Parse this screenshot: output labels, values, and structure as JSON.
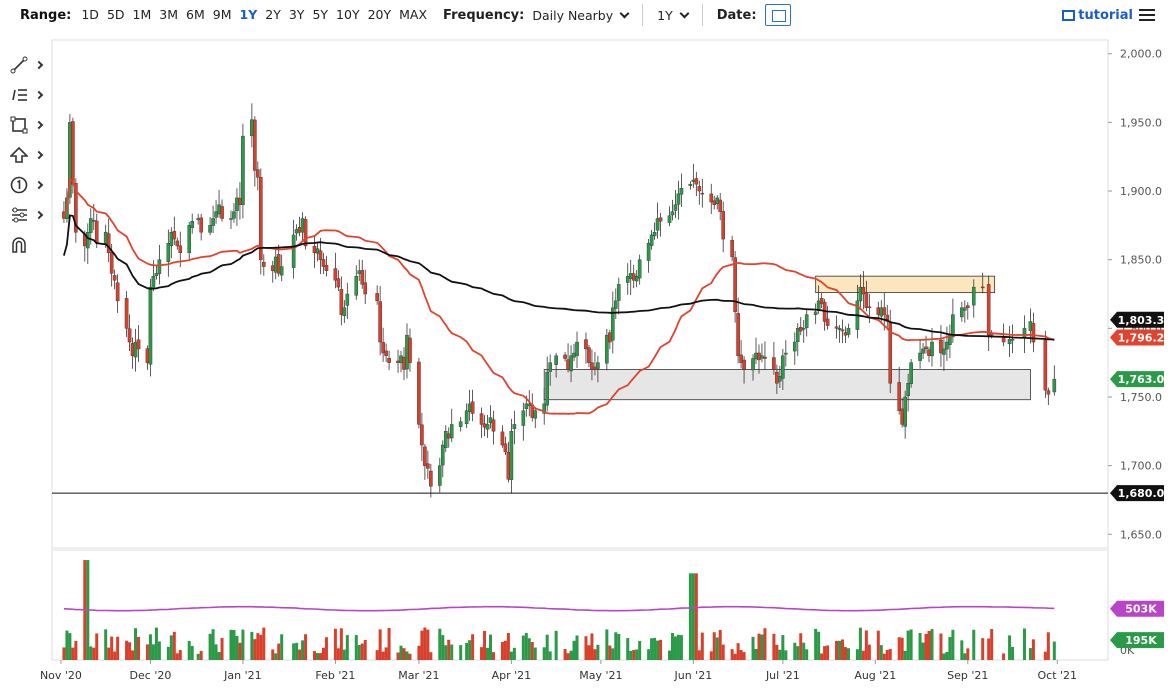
{
  "toolbar": {
    "range_label": "Range:",
    "ranges": [
      "1D",
      "5D",
      "1M",
      "3M",
      "6M",
      "9M",
      "1Y",
      "2Y",
      "3Y",
      "5Y",
      "10Y",
      "20Y",
      "MAX"
    ],
    "active_range": "1Y",
    "frequency_label": "Frequency:",
    "frequency_value": "Daily Nearby",
    "period_value": "1Y",
    "date_label": "Date:",
    "tutorial_label": "tutorial"
  },
  "icons": [
    "line-tool-icon",
    "annotation-list-icon",
    "rectangle-tool-icon",
    "arrow-up-icon",
    "number-marker-icon",
    "settings-sliders-icon",
    "magnet-icon",
    "calendar-icon",
    "menu-icon"
  ],
  "colors": {
    "up": "#2a9a48",
    "down": "#d9402b",
    "ma50": "#e0442f",
    "ma200": "#111111",
    "volume_ma": "#b845c8",
    "zone_resistance": "#fbe6bd",
    "zone_support": "#e6e6e6"
  },
  "chart_data": [
    {
      "type": "candlestick",
      "instrument_note": "",
      "y_ticks": [
        "2,000.0",
        "1,950.0",
        "1,900.0",
        "1,850.0",
        "1,800.0",
        "1,750.0",
        "1,700.0",
        "1,650.0"
      ],
      "y_tick_values": [
        2000,
        1950,
        1900,
        1850,
        1800,
        1750,
        1700,
        1650
      ],
      "ylim": [
        1640,
        2010
      ],
      "x_ticks": [
        "Nov '20",
        "Dec '20",
        "Jan '21",
        "Feb '21",
        "Mar '21",
        "Apr '21",
        "May '21",
        "Jun '21",
        "Jul '21",
        "Aug '21",
        "Sep '21",
        "Oct '21"
      ],
      "x_tick_dates": [
        "2020-11-01",
        "2020-12-01",
        "2021-01-01",
        "2021-02-01",
        "2021-03-01",
        "2021-04-01",
        "2021-05-01",
        "2021-06-01",
        "2021-07-01",
        "2021-08-01",
        "2021-09-01",
        "2021-10-01"
      ],
      "xlim": [
        "2020-10-29",
        "2021-10-18"
      ],
      "last_date": "2021-09-20",
      "price_labels": [
        {
          "text": "1,803.3",
          "value": 1803.3,
          "color": "#111111"
        },
        {
          "text": "1,796.2",
          "value": 1796.2,
          "color": "#e0442f"
        },
        {
          "text": "1,763.0",
          "value": 1763.0,
          "color": "#2a9a48"
        },
        {
          "text": "1,680.0",
          "value": 1680.0,
          "color": "#111111"
        }
      ],
      "horizontal_lines": [
        {
          "value": 1680,
          "color": "#111111"
        }
      ],
      "zones": [
        {
          "from": "2021-07-12",
          "to": "2021-09-10",
          "low": 1826,
          "high": 1838,
          "kind": "resistance"
        },
        {
          "from": "2021-04-12",
          "to": "2021-09-22",
          "low": 1748,
          "high": 1770,
          "kind": "support"
        }
      ],
      "closes_by_month": [
        {
          "month": "2020-11",
          "closes": [
            1880,
            1895,
            1950,
            1905,
            1870,
            1860,
            1870,
            1880,
            1878,
            1862,
            1870,
            1855,
            1840,
            1835,
            1820,
            1800,
            1790,
            1780,
            1790,
            1785,
            1775
          ]
        },
        {
          "month": "2020-12",
          "closes": [
            1830,
            1838,
            1840,
            1850,
            1862,
            1870,
            1865,
            1860,
            1855,
            1875,
            1878,
            1880,
            1870,
            1875,
            1880,
            1885,
            1890,
            1880,
            1880,
            1885,
            1895,
            1890
          ]
        },
        {
          "month": "2021-01",
          "closes": [
            1940,
            1952,
            1915,
            1910,
            1850,
            1845,
            1842,
            1852,
            1840,
            1845,
            1868,
            1872,
            1870,
            1880,
            1860,
            1855,
            1858,
            1850,
            1845,
            1842
          ]
        },
        {
          "month": "2021-02",
          "closes": [
            1835,
            1830,
            1810,
            1815,
            1825,
            1838,
            1842,
            1832,
            1825,
            1820,
            1790,
            1782,
            1780,
            1775,
            1775,
            1780,
            1770,
            1795,
            1775
          ]
        },
        {
          "month": "2021-03",
          "closes": [
            1730,
            1715,
            1700,
            1698,
            1685,
            1700,
            1715,
            1725,
            1720,
            1730,
            1732,
            1740,
            1745,
            1738,
            1730,
            1728,
            1730,
            1735,
            1725,
            1715,
            1710,
            1690
          ]
        },
        {
          "month": "2021-04",
          "closes": [
            1725,
            1730,
            1740,
            1745,
            1745,
            1735,
            1740,
            1745,
            1768,
            1775,
            1780,
            1778,
            1770,
            1780,
            1782,
            1790,
            1785,
            1775,
            1770,
            1770,
            1775
          ]
        },
        {
          "month": "2021-05",
          "closes": [
            1795,
            1790,
            1815,
            1820,
            1832,
            1838,
            1840,
            1835,
            1838,
            1850,
            1862,
            1868,
            1870,
            1880,
            1878,
            1882,
            1885,
            1890,
            1898,
            1902,
            1905
          ]
        },
        {
          "month": "2021-06",
          "closes": [
            1908,
            1905,
            1900,
            1898,
            1892,
            1890,
            1895,
            1885,
            1865,
            1852,
            1812,
            1780,
            1775,
            1770,
            1778,
            1782,
            1777,
            1780,
            1778,
            1770,
            1760,
            1765
          ]
        },
        {
          "month": "2021-07",
          "closes": [
            1780,
            1782,
            1790,
            1800,
            1798,
            1800,
            1810,
            1812,
            1820,
            1818,
            1805,
            1802,
            1800,
            1800,
            1798,
            1795,
            1800,
            1820,
            1830,
            1825,
            1815,
            1815
          ]
        },
        {
          "month": "2021-08",
          "closes": [
            1810,
            1815,
            1810,
            1805,
            1760,
            1740,
            1730,
            1750,
            1760,
            1775,
            1782,
            1785,
            1785,
            1780,
            1790,
            1782,
            1785,
            1790,
            1795,
            1810,
            1815,
            1815
          ]
        },
        {
          "month": "2021-09",
          "closes": [
            1815,
            1830,
            1830,
            1795,
            1795,
            1790,
            1792,
            1792,
            1800,
            1805,
            1790,
            1755,
            1752,
            1763
          ]
        }
      ]
    },
    {
      "type": "bar",
      "panel": "volume",
      "y_tick": "0K",
      "value_labels": [
        {
          "text": "503K",
          "value": 503,
          "color": "#b845c8"
        },
        {
          "text": "195K",
          "value": 195,
          "color": "#2a9a48"
        }
      ],
      "volume_ma_level": 503,
      "volume_range_k": [
        60,
        320
      ],
      "spike_values_k": [
        {
          "date": "2020-11-09",
          "value": 980
        },
        {
          "date": "2021-06-01",
          "value": 850
        }
      ]
    }
  ]
}
